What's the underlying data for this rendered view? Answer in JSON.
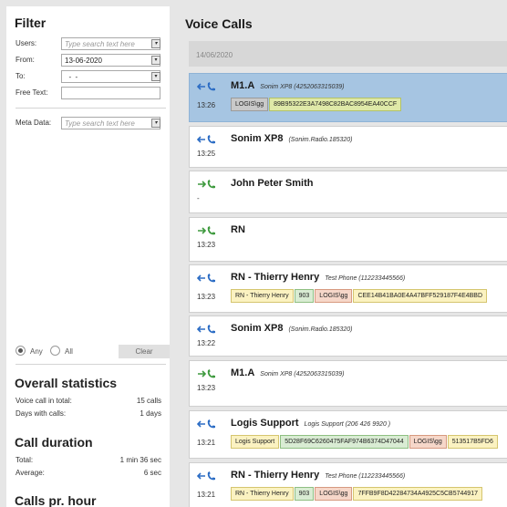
{
  "filter": {
    "title": "Filter",
    "users_label": "Users:",
    "users_placeholder": "Type search text here",
    "from_label": "From:",
    "from_value": "13-06-2020",
    "to_label": "To:",
    "to_value": "  -  -",
    "free_text_label": "Free Text:",
    "free_text_value": "",
    "meta_label": "Meta Data:",
    "meta_placeholder": "Type search text here",
    "any_label": "Any",
    "all_label": "All",
    "clear_label": "Clear"
  },
  "stats": {
    "overall_title": "Overall statistics",
    "voice_calls_label": "Voice call in total:",
    "voice_calls_value": "15 calls",
    "days_label": "Days with calls:",
    "days_value": "1 days",
    "duration_title": "Call duration",
    "total_label": "Total:",
    "total_value": "1 min 36 sec",
    "average_label": "Average:",
    "average_value": "6 sec",
    "per_hour_title": "Calls pr. hour"
  },
  "main": {
    "title": "Voice Calls",
    "date": "14/06/2020",
    "calls": [
      {
        "direction": "incoming",
        "name": "M1.A",
        "sub": "Sonim XP8 (4252063315039)",
        "time": "13:26",
        "selected": true,
        "tags": [
          {
            "text": "LOGIS\\gg",
            "style": "gr"
          },
          {
            "text": "89B95322E3A7498C82BAC8954EA40CCF",
            "style": "yg"
          }
        ]
      },
      {
        "direction": "incoming",
        "name": "Sonim XP8",
        "sub": "(Sonim.Radio.185320)",
        "time": "13:25",
        "selected": false,
        "tags": []
      },
      {
        "direction": "outgoing",
        "name": "John Peter Smith",
        "sub": "",
        "time": "-",
        "selected": false,
        "tags": []
      },
      {
        "direction": "outgoing",
        "name": "RN",
        "sub": "",
        "time": "13:23",
        "selected": false,
        "tags": []
      },
      {
        "direction": "incoming",
        "name": "RN - Thierry Henry",
        "sub": "Test Phone (112233445566)",
        "time": "13:23",
        "selected": false,
        "tags": [
          {
            "text": "RN - Thierry Henry",
            "style": "y"
          },
          {
            "text": "903",
            "style": "g"
          },
          {
            "text": "LOGIS\\gg",
            "style": "r"
          },
          {
            "text": "CEE14B41BA0E4A47BFF529187F4E4BBD",
            "style": "y"
          }
        ]
      },
      {
        "direction": "incoming",
        "name": "Sonim XP8",
        "sub": "(Sonim.Radio.185320)",
        "time": "13:22",
        "selected": false,
        "tags": []
      },
      {
        "direction": "outgoing",
        "name": "M1.A",
        "sub": "Sonim XP8 (4252063315039)",
        "time": "13:23",
        "selected": false,
        "tags": []
      },
      {
        "direction": "incoming",
        "name": "Logis Support",
        "sub": "Logis Support (206 426 9920 )",
        "time": "13:21",
        "selected": false,
        "tags": [
          {
            "text": "Logis Support",
            "style": "y"
          },
          {
            "text": "5D28F69C6260475FAF974B6374D47044",
            "style": "g"
          },
          {
            "text": "LOGIS\\gg",
            "style": "r"
          },
          {
            "text": "513517B5FD6",
            "style": "y"
          }
        ]
      },
      {
        "direction": "incoming",
        "name": "RN - Thierry Henry",
        "sub": "Test Phone (112233445566)",
        "time": "13:21",
        "selected": false,
        "tags": [
          {
            "text": "RN - Thierry Henry",
            "style": "y"
          },
          {
            "text": "903",
            "style": "g"
          },
          {
            "text": "LOGIS\\gg",
            "style": "r"
          },
          {
            "text": "7FFB9F8D42284734A4925C5CB5744917",
            "style": "y"
          }
        ]
      }
    ]
  },
  "colors": {
    "incoming_arrow": "#2b6cc4",
    "outgoing_arrow": "#3e9a3e",
    "selected_row": "#a6c5e2"
  }
}
